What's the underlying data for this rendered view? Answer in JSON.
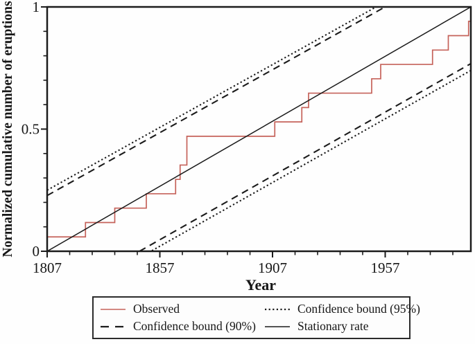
{
  "chart_data": {
    "type": "line",
    "title": "",
    "xlabel": "Year",
    "ylabel": "Normalized cumulative number of eruptions",
    "x_range": [
      1807,
      1995
    ],
    "y_range": [
      0,
      1
    ],
    "x_major_ticks": [
      1807,
      1857,
      1907,
      1957
    ],
    "x_minor_tick_step": 10,
    "y_major_ticks": [
      0,
      0.5,
      1
    ],
    "y_major_tick_labels": [
      "0",
      "0.5",
      "1"
    ],
    "y_minor_tick_step": 0.1,
    "grid": false,
    "legend_position": "bottom-center-boxed",
    "axis_color": "#1b1b1b",
    "observed_color": "#c5625a",
    "series": [
      {
        "name": "Observed",
        "type": "step",
        "line_style": "solid",
        "color": "#c5625a",
        "points": [
          [
            1807,
            0.0588
          ],
          [
            1824,
            0.1176
          ],
          [
            1837,
            0.1765
          ],
          [
            1851,
            0.2353
          ],
          [
            1864,
            0.2941
          ],
          [
            1866,
            0.3529
          ],
          [
            1869,
            0.4706
          ],
          [
            1908,
            0.5294
          ],
          [
            1920,
            0.5882
          ],
          [
            1923,
            0.6471
          ],
          [
            1951,
            0.7059
          ],
          [
            1955,
            0.7647
          ],
          [
            1978,
            0.8235
          ],
          [
            1985,
            0.8824
          ],
          [
            1994,
            0.9412
          ],
          [
            1995,
            0.9412
          ]
        ]
      },
      {
        "name": "Confidence bound (95%)",
        "type": "line",
        "line_style": "dotted",
        "color": "#1b1b1b",
        "lines": [
          [
            [
              1807,
              0.25
            ],
            [
              1995,
              1.216
            ]
          ],
          [
            [
              1807,
              -0.24
            ],
            [
              1995,
              0.74
            ]
          ]
        ]
      },
      {
        "name": "Confidence bound (90%)",
        "type": "line",
        "line_style": "dashed",
        "color": "#1b1b1b",
        "lines": [
          [
            [
              1807,
              0.228
            ],
            [
              1995,
              1.196
            ]
          ],
          [
            [
              1807,
              -0.214
            ],
            [
              1995,
              0.768
            ]
          ]
        ]
      },
      {
        "name": "Stationary rate",
        "type": "line",
        "line_style": "solid",
        "color": "#1b1b1b",
        "lines": [
          [
            [
              1807,
              0.0
            ],
            [
              1995,
              1.0
            ]
          ]
        ]
      }
    ],
    "legend": [
      "Observed",
      "Confidence bound (95%)",
      "Confidence bound (90%)",
      "Stationary rate"
    ]
  }
}
